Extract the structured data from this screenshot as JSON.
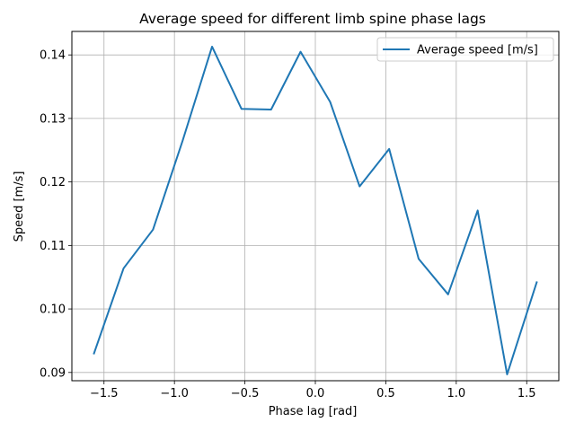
{
  "chart_data": {
    "type": "line",
    "title": "Average speed for different limb spine phase lags",
    "xlabel": "Phase lag [rad]",
    "ylabel": "Speed [m/s]",
    "xlim": [
      -1.728,
      1.728
    ],
    "ylim": [
      0.0887,
      0.1437
    ],
    "xticks": [
      -1.5,
      -1.0,
      -0.5,
      0.0,
      0.5,
      1.0,
      1.5
    ],
    "xtick_labels": [
      "−1.5",
      "−1.0",
      "−0.5",
      "0.0",
      "0.5",
      "1.0",
      "1.5"
    ],
    "yticks": [
      0.09,
      0.1,
      0.11,
      0.12,
      0.13,
      0.14
    ],
    "ytick_labels": [
      "0.09",
      "0.10",
      "0.11",
      "0.12",
      "0.13",
      "0.14"
    ],
    "grid": true,
    "legend_position": "upper right",
    "series": [
      {
        "name": "Average speed [m/s]",
        "color": "#1f77b4",
        "x": [
          -1.571,
          -1.361,
          -1.152,
          -0.942,
          -0.733,
          -0.524,
          -0.314,
          -0.105,
          0.105,
          0.314,
          0.524,
          0.733,
          0.942,
          1.152,
          1.361,
          1.571
        ],
        "y": [
          0.093,
          0.1064,
          0.1125,
          0.1265,
          0.1413,
          0.1315,
          0.1314,
          0.1405,
          0.1326,
          0.1193,
          0.1252,
          0.1079,
          0.1023,
          0.1155,
          0.0897,
          0.1042
        ]
      }
    ]
  }
}
